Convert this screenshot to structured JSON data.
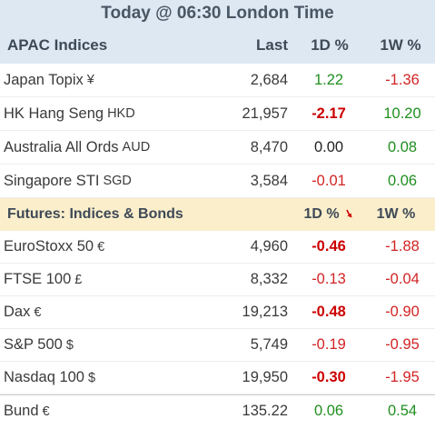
{
  "title": "Today @ 06:30 London Time",
  "apac": {
    "header": {
      "name": "APAC Indices",
      "last": "Last",
      "d1": "1D %",
      "w1": "1W %"
    },
    "rows": [
      {
        "name": "Japan Topix",
        "currency": "¥",
        "last": "2,684",
        "d1": "1.22",
        "w1": "-1.36",
        "d1_class": "pos",
        "w1_class": "neg"
      },
      {
        "name": "HK Hang Seng",
        "currency": "HKD",
        "last": "21,957",
        "d1": "-2.17",
        "w1": "10.20",
        "d1_class": "neg strong",
        "w1_class": "pos"
      },
      {
        "name": "Australia All Ords",
        "currency": "AUD",
        "last": "8,470",
        "d1": "0.00",
        "w1": "0.08",
        "d1_class": "zero",
        "w1_class": "pos"
      },
      {
        "name": "Singapore STI",
        "currency": "SGD",
        "last": "3,584",
        "d1": "-0.01",
        "w1": "0.06",
        "d1_class": "neg",
        "w1_class": "pos"
      }
    ]
  },
  "futures": {
    "header": {
      "name": "Futures: Indices & Bonds",
      "d1": "1D %",
      "w1": "1W %",
      "sort_icon": "sort-down-arrow-icon"
    },
    "rows": [
      {
        "name": "EuroStoxx 50",
        "currency": "€",
        "last": "4,960",
        "d1": "-0.46",
        "w1": "-1.88",
        "d1_class": "neg strong",
        "w1_class": "neg"
      },
      {
        "name": "FTSE 100",
        "currency": "£",
        "last": "8,332",
        "d1": "-0.13",
        "w1": "-0.04",
        "d1_class": "neg",
        "w1_class": "neg"
      },
      {
        "name": "Dax",
        "currency": "€",
        "last": "19,213",
        "d1": "-0.48",
        "w1": "-0.90",
        "d1_class": "neg strong",
        "w1_class": "neg"
      },
      {
        "name": "S&P 500",
        "currency": "$",
        "last": "5,749",
        "d1": "-0.19",
        "w1": "-0.95",
        "d1_class": "neg",
        "w1_class": "neg"
      },
      {
        "name": "Nasdaq 100",
        "currency": "$",
        "last": "19,950",
        "d1": "-0.30",
        "w1": "-1.95",
        "d1_class": "neg strong",
        "w1_class": "neg"
      },
      {
        "name": "Bund",
        "currency": "€",
        "last": "135.22",
        "d1": "0.06",
        "w1": "0.54",
        "d1_class": "pos",
        "w1_class": "pos"
      }
    ]
  },
  "colors": {
    "header_bg": "#dde8f3",
    "futures_bg": "#fbeecb",
    "positive": "#1f8f1f",
    "negative": "#d22424"
  }
}
